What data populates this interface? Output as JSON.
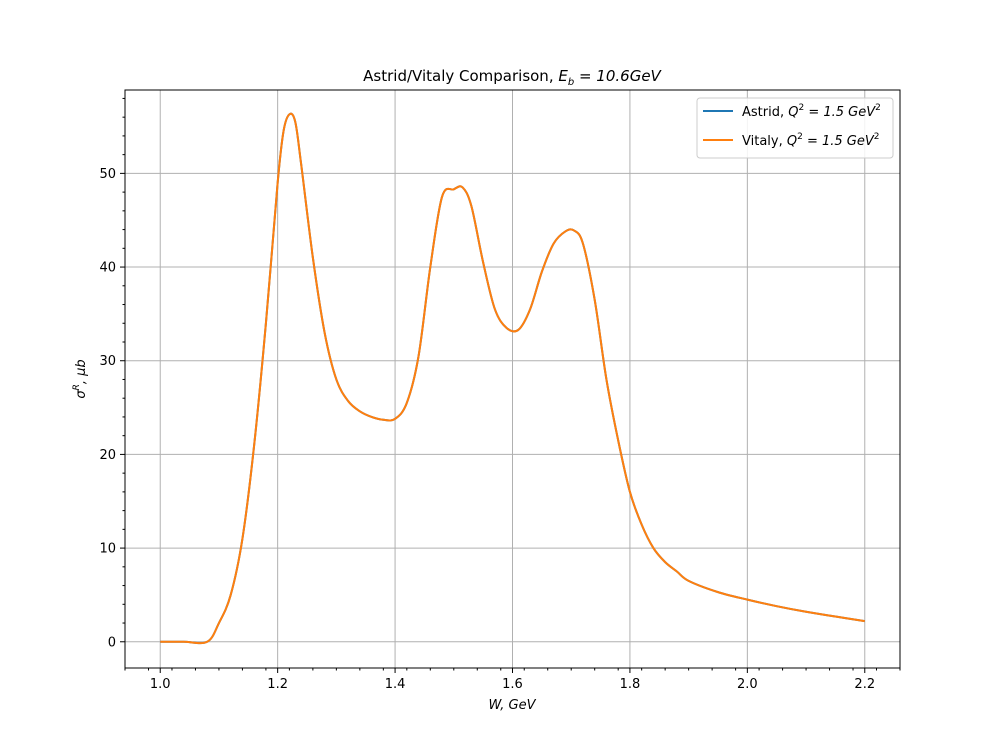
{
  "chart_data": {
    "type": "line",
    "title_prefix": "Astrid/Vitaly Comparison, ",
    "title_math_base": "E",
    "title_math_sub": "b",
    "title_math_rest": " = 10.6GeV",
    "xlabel": "W, GeV",
    "ylabel_base": "σ",
    "ylabel_sup": "R",
    "ylabel_rest": ", μb",
    "xlim": [
      0.94,
      2.26
    ],
    "ylim": [
      -2.8,
      58.9
    ],
    "xticks": [
      1.0,
      1.2,
      1.4,
      1.6,
      1.8,
      2.0,
      2.2
    ],
    "xtick_labels": [
      "1.0",
      "1.2",
      "1.4",
      "1.6",
      "1.8",
      "2.0",
      "2.2"
    ],
    "yticks": [
      0,
      10,
      20,
      30,
      40,
      50
    ],
    "ytick_labels": [
      "0",
      "10",
      "20",
      "30",
      "40",
      "50"
    ],
    "grid": true,
    "legend_position": "top-right",
    "series": [
      {
        "name_prefix": "Astrid, ",
        "name_math": "Q",
        "name_sup": "2",
        "name_rest": " = 1.5 GeV",
        "name_sup2": "2",
        "color": "#1f77b4",
        "x": [
          1.0,
          1.04,
          1.08,
          1.1,
          1.12,
          1.14,
          1.16,
          1.18,
          1.2,
          1.21,
          1.22,
          1.23,
          1.24,
          1.26,
          1.28,
          1.3,
          1.32,
          1.34,
          1.36,
          1.38,
          1.4,
          1.42,
          1.44,
          1.46,
          1.48,
          1.5,
          1.515,
          1.53,
          1.55,
          1.57,
          1.59,
          1.61,
          1.63,
          1.65,
          1.67,
          1.69,
          1.705,
          1.72,
          1.74,
          1.76,
          1.78,
          1.8,
          1.82,
          1.84,
          1.86,
          1.88,
          1.9,
          1.95,
          2.0,
          2.05,
          2.1,
          2.15,
          2.2
        ],
        "y": [
          0,
          0,
          0,
          2,
          5,
          11,
          21,
          34,
          49,
          54.5,
          56.3,
          55.5,
          51,
          41,
          33,
          28,
          25.7,
          24.6,
          24.0,
          23.7,
          23.8,
          25.5,
          30.5,
          40,
          47.5,
          48.3,
          48.5,
          46.5,
          40.5,
          35.5,
          33.5,
          33.3,
          35.5,
          39.5,
          42.5,
          43.8,
          43.9,
          42.5,
          36.5,
          28,
          21.5,
          16,
          12.5,
          10,
          8.5,
          7.5,
          6.5,
          5.3,
          4.5,
          3.8,
          3.2,
          2.7,
          2.2
        ]
      },
      {
        "name_prefix": "Vitaly, ",
        "name_math": "Q",
        "name_sup": "2",
        "name_rest": " = 1.5 GeV",
        "name_sup2": "2",
        "color": "#ff7f0e",
        "x": [
          1.0,
          1.04,
          1.08,
          1.1,
          1.12,
          1.14,
          1.16,
          1.18,
          1.2,
          1.21,
          1.22,
          1.23,
          1.24,
          1.26,
          1.28,
          1.3,
          1.32,
          1.34,
          1.36,
          1.38,
          1.4,
          1.42,
          1.44,
          1.46,
          1.48,
          1.5,
          1.515,
          1.53,
          1.55,
          1.57,
          1.59,
          1.61,
          1.63,
          1.65,
          1.67,
          1.69,
          1.705,
          1.72,
          1.74,
          1.76,
          1.78,
          1.8,
          1.82,
          1.84,
          1.86,
          1.88,
          1.9,
          1.95,
          2.0,
          2.05,
          2.1,
          2.15,
          2.2
        ],
        "y": [
          0,
          0,
          0,
          2,
          5,
          11,
          21,
          34,
          49,
          54.5,
          56.3,
          55.5,
          51,
          41,
          33,
          28,
          25.7,
          24.6,
          24.0,
          23.7,
          23.8,
          25.5,
          30.5,
          40,
          47.5,
          48.3,
          48.5,
          46.5,
          40.5,
          35.5,
          33.5,
          33.3,
          35.5,
          39.5,
          42.5,
          43.8,
          43.9,
          42.5,
          36.5,
          28,
          21.5,
          16,
          12.5,
          10,
          8.5,
          7.5,
          6.5,
          5.3,
          4.5,
          3.8,
          3.2,
          2.7,
          2.2
        ]
      }
    ]
  }
}
